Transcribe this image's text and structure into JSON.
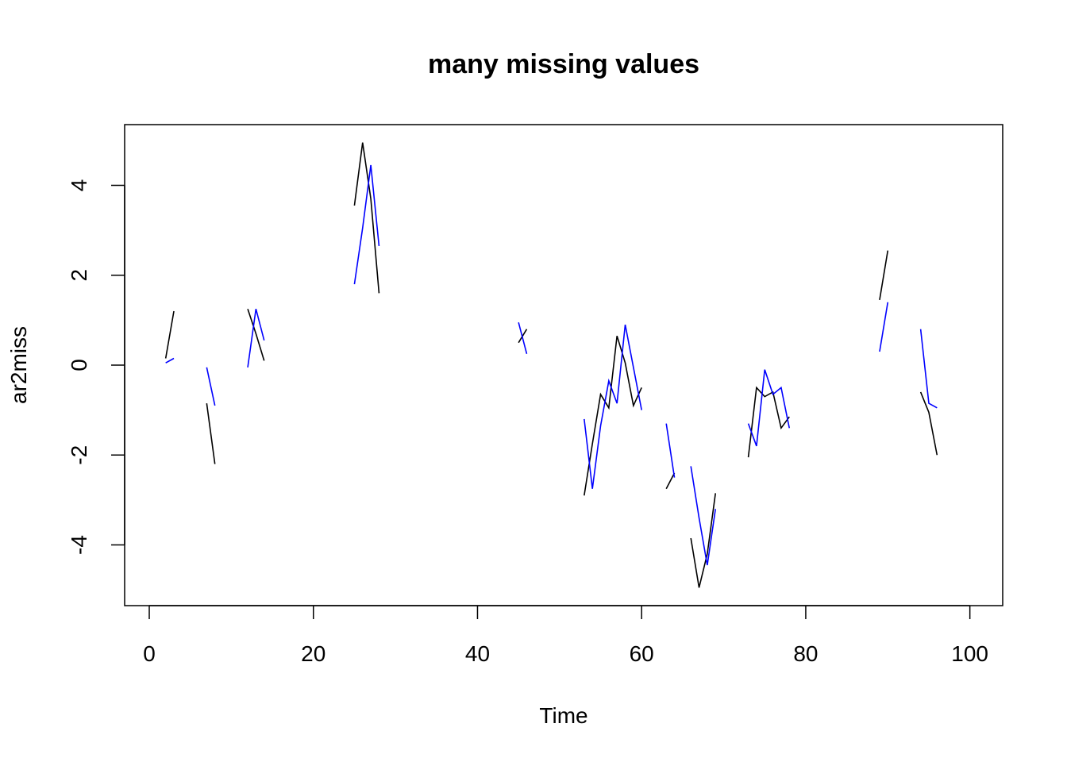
{
  "chart_data": {
    "type": "line",
    "title": "many missing values",
    "xlabel": "Time",
    "ylabel": "ar2miss",
    "xlim": [
      -3,
      104
    ],
    "ylim": [
      -5.35,
      5.35
    ],
    "xticks": [
      0,
      20,
      40,
      60,
      80,
      100
    ],
    "yticks": [
      -4,
      -2,
      0,
      2,
      4
    ],
    "grid": false,
    "series": [
      {
        "color": "#000000",
        "segments": [
          [
            [
              2,
              0.15
            ],
            [
              3,
              1.2
            ]
          ],
          [
            [
              7,
              -0.85
            ],
            [
              8,
              -2.2
            ]
          ],
          [
            [
              12,
              1.25
            ],
            [
              13,
              0.7
            ],
            [
              14,
              0.1
            ]
          ],
          [
            [
              25,
              3.55
            ],
            [
              26,
              4.95
            ],
            [
              27,
              3.7
            ],
            [
              28,
              1.6
            ]
          ],
          [
            [
              45,
              0.5
            ],
            [
              46,
              0.8
            ]
          ],
          [
            [
              53,
              -2.9
            ],
            [
              54,
              -1.75
            ],
            [
              55,
              -0.65
            ],
            [
              56,
              -0.95
            ],
            [
              57,
              0.65
            ],
            [
              58,
              0.05
            ],
            [
              59,
              -0.9
            ],
            [
              60,
              -0.5
            ]
          ],
          [
            [
              63,
              -2.75
            ],
            [
              64,
              -2.4
            ]
          ],
          [
            [
              66,
              -3.85
            ],
            [
              67,
              -4.95
            ],
            [
              68,
              -4.2
            ],
            [
              69,
              -2.85
            ]
          ],
          [
            [
              73,
              -2.05
            ],
            [
              74,
              -0.5
            ],
            [
              75,
              -0.7
            ],
            [
              76,
              -0.6
            ],
            [
              77,
              -1.4
            ],
            [
              78,
              -1.15
            ]
          ],
          [
            [
              89,
              1.45
            ],
            [
              90,
              2.55
            ]
          ],
          [
            [
              94,
              -0.6
            ],
            [
              95,
              -1.05
            ],
            [
              96,
              -2.0
            ]
          ]
        ]
      },
      {
        "color": "#0000ff",
        "segments": [
          [
            [
              2,
              0.05
            ],
            [
              3,
              0.15
            ]
          ],
          [
            [
              7,
              -0.05
            ],
            [
              8,
              -0.9
            ]
          ],
          [
            [
              12,
              -0.05
            ],
            [
              13,
              1.25
            ],
            [
              14,
              0.55
            ]
          ],
          [
            [
              25,
              1.8
            ],
            [
              26,
              3.05
            ],
            [
              27,
              4.45
            ],
            [
              28,
              2.65
            ]
          ],
          [
            [
              45,
              0.95
            ],
            [
              46,
              0.25
            ]
          ],
          [
            [
              53,
              -1.2
            ],
            [
              54,
              -2.75
            ],
            [
              55,
              -1.35
            ],
            [
              56,
              -0.35
            ],
            [
              57,
              -0.85
            ],
            [
              58,
              0.9
            ],
            [
              59,
              -0.05
            ],
            [
              60,
              -1.0
            ]
          ],
          [
            [
              63,
              -1.3
            ],
            [
              64,
              -2.5
            ]
          ],
          [
            [
              66,
              -2.25
            ],
            [
              67,
              -3.4
            ],
            [
              68,
              -4.45
            ],
            [
              69,
              -3.2
            ]
          ],
          [
            [
              73,
              -1.3
            ],
            [
              74,
              -1.8
            ],
            [
              75,
              -0.1
            ],
            [
              76,
              -0.65
            ],
            [
              77,
              -0.5
            ],
            [
              78,
              -1.4
            ]
          ],
          [
            [
              89,
              0.3
            ],
            [
              90,
              1.4
            ]
          ],
          [
            [
              94,
              0.8
            ],
            [
              95,
              -0.85
            ],
            [
              96,
              -0.95
            ]
          ]
        ]
      }
    ]
  }
}
